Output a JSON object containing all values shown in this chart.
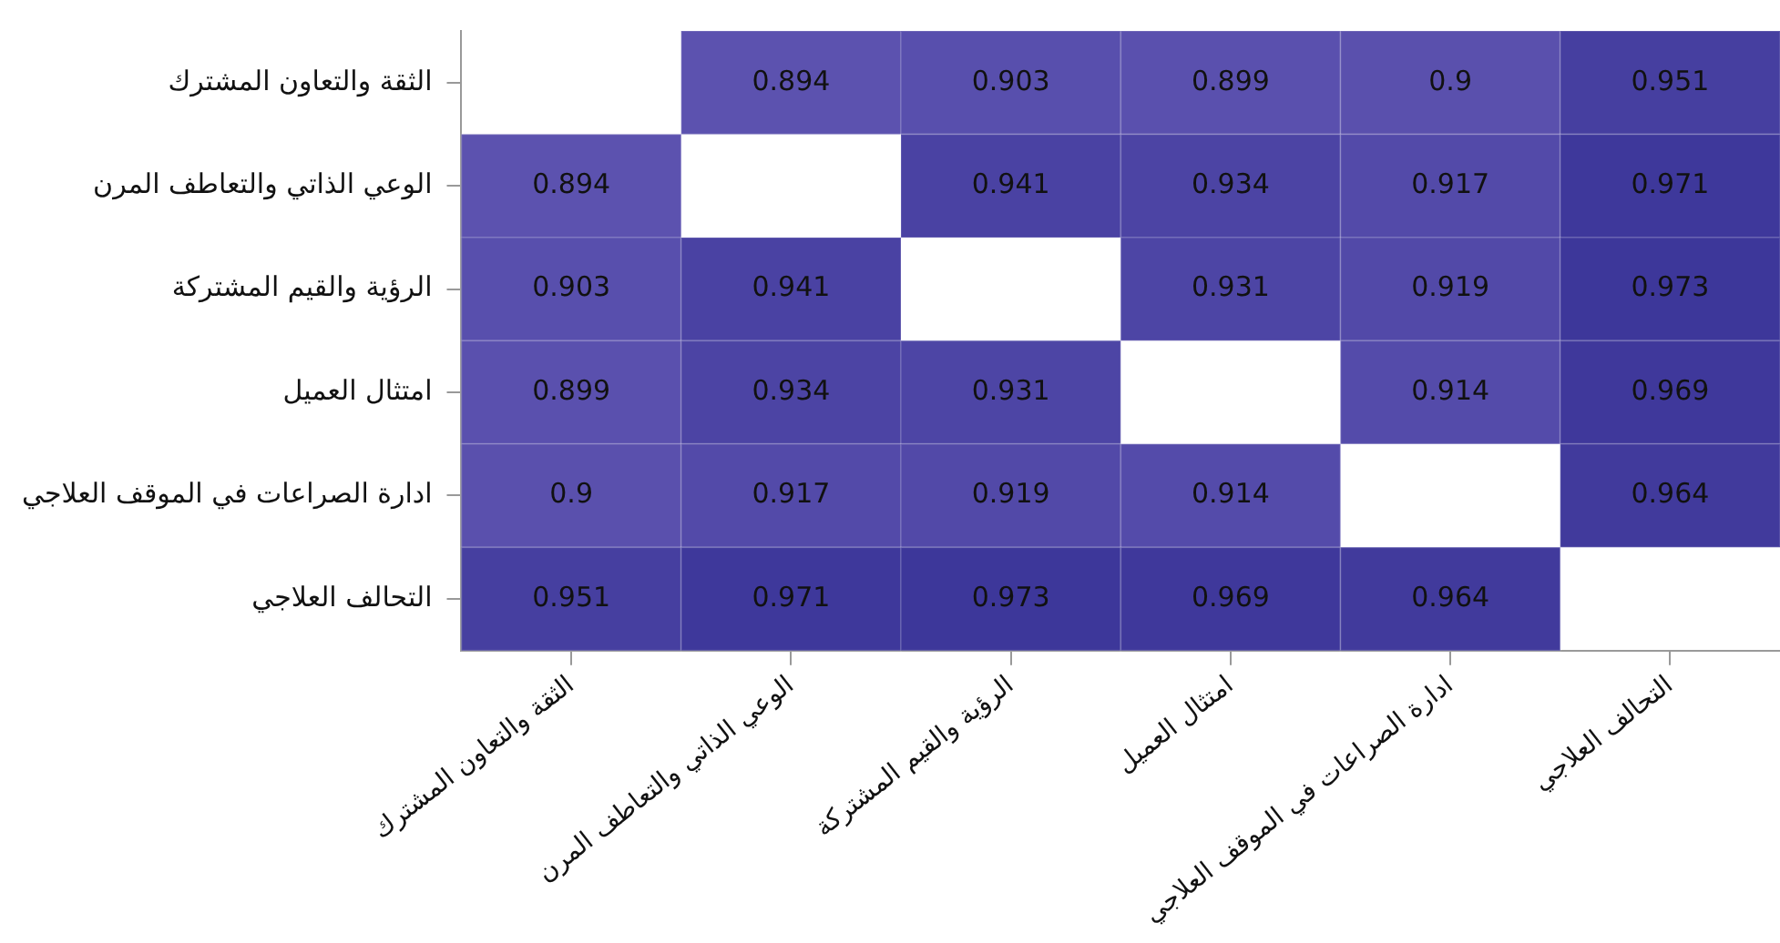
{
  "chart_data": {
    "type": "heatmap",
    "categories": [
      "الثقة والتعاون المشترك",
      "الوعي الذاتي والتعاطف المرن",
      "الرؤية والقيم المشتركة",
      "امتثال العميل",
      "ادارة الصراعات في الموقف العلاجي",
      "التحالف العلاجي"
    ],
    "y_categories": [
      "الثقة والتعاون المشترك",
      "الوعي الذاتي والتعاطف المرن",
      "الرؤية والقيم المشتركة",
      "امتثال العميل",
      "ادارة الصراعات في الموقف العلاجي",
      "التحالف العلاجي"
    ],
    "cells": [
      [
        null,
        0.894,
        0.903,
        0.899,
        0.9,
        0.951
      ],
      [
        0.894,
        null,
        0.941,
        0.934,
        0.917,
        0.971
      ],
      [
        0.903,
        0.941,
        null,
        0.931,
        0.919,
        0.973
      ],
      [
        0.899,
        0.934,
        0.931,
        null,
        0.914,
        0.969
      ],
      [
        0.9,
        0.917,
        0.919,
        0.914,
        null,
        0.964
      ],
      [
        0.951,
        0.971,
        0.973,
        0.969,
        0.964,
        null
      ]
    ],
    "data_labels": true
  }
}
